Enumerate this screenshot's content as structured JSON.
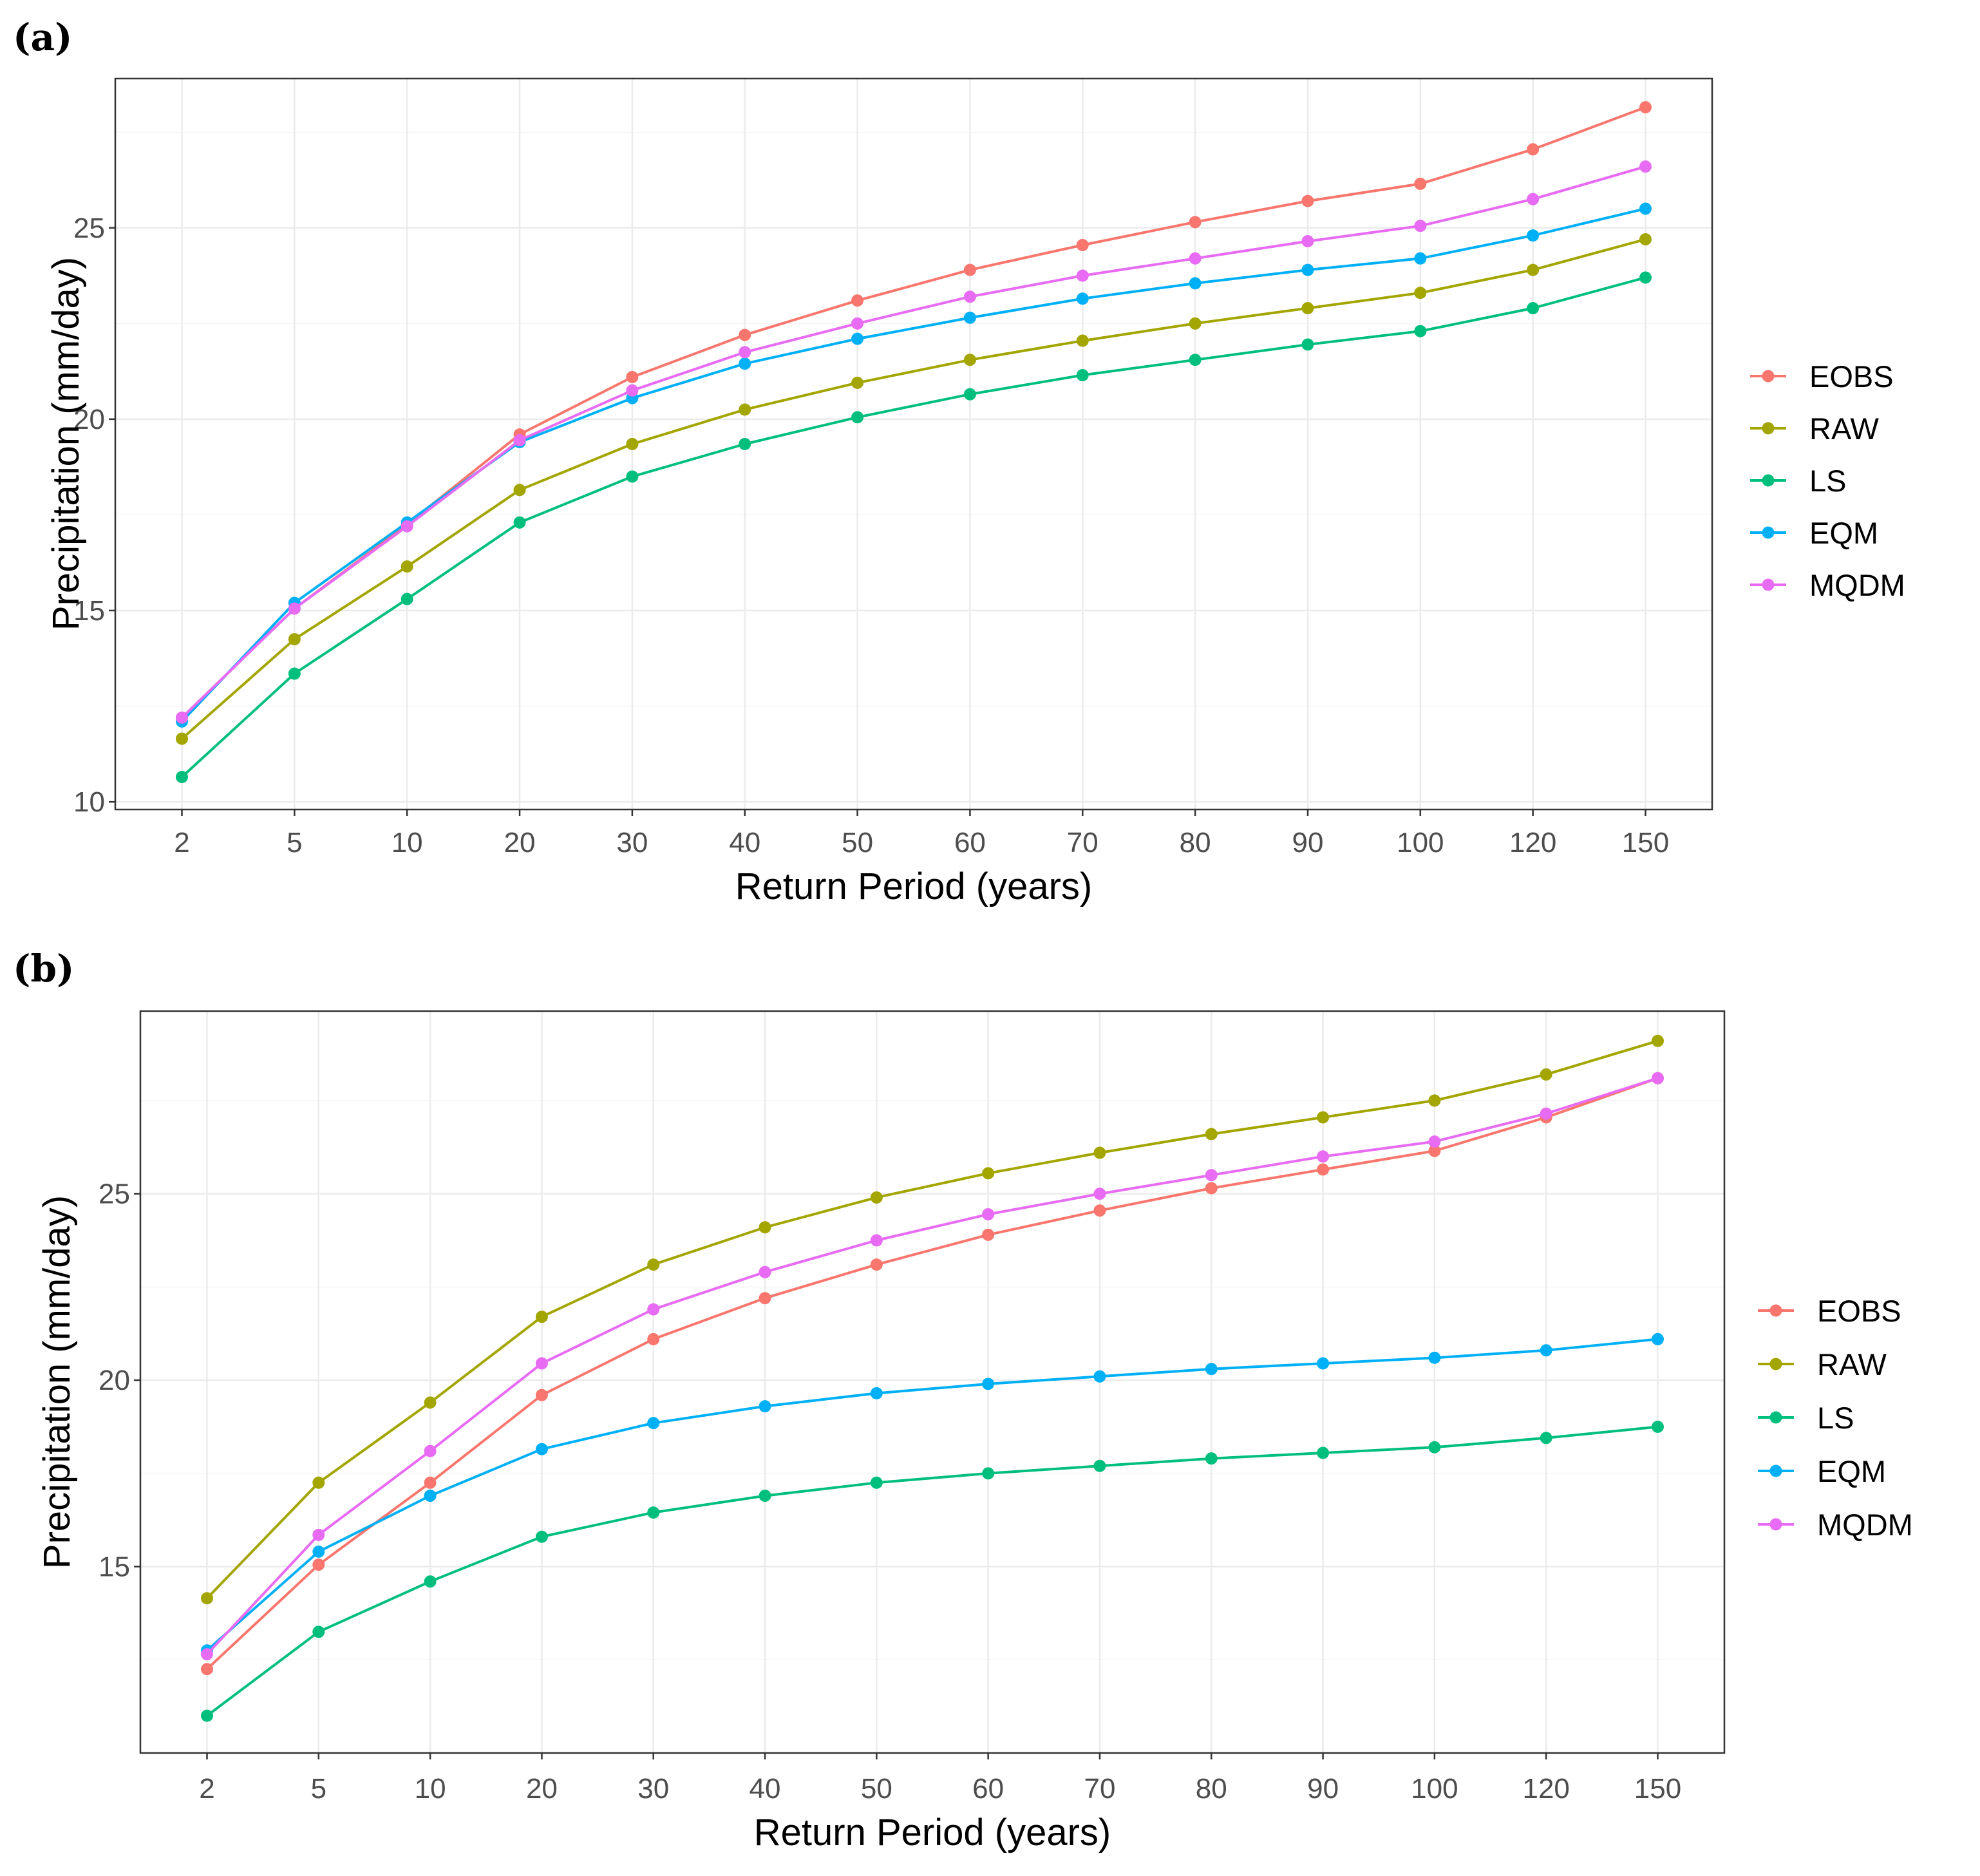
{
  "colors": {
    "EOBS": "#F8766D",
    "RAW": "#A3A500",
    "LS": "#00BF7D",
    "EQM": "#00B0F6",
    "MQDM": "#E76BF3",
    "grid_major": "#EBEBEB",
    "grid_minor": "#F5F5F5",
    "frame": "#333333"
  },
  "chart_data": [
    {
      "panel_label": "(a)",
      "type": "line",
      "xlabel": "Return Period (years)",
      "ylabel": "Precipitation (mm/day)",
      "categories": [
        "2",
        "5",
        "10",
        "20",
        "30",
        "40",
        "50",
        "60",
        "70",
        "80",
        "90",
        "100",
        "120",
        "150"
      ],
      "ylim": [
        9.8,
        28.9
      ],
      "yticks": [
        10,
        15,
        20,
        25
      ],
      "ytick_labels": [
        "10",
        "15",
        "20",
        "25"
      ],
      "grid": true,
      "legend_position": "right",
      "series": [
        {
          "name": "EOBS",
          "values": [
            12.2,
            15.05,
            17.25,
            19.6,
            21.1,
            22.2,
            23.1,
            23.9,
            24.55,
            25.15,
            25.7,
            26.15,
            27.05,
            28.15
          ]
        },
        {
          "name": "RAW",
          "values": [
            11.65,
            14.25,
            16.15,
            18.15,
            19.35,
            20.25,
            20.95,
            21.55,
            22.05,
            22.5,
            22.9,
            23.3,
            23.9,
            24.7
          ]
        },
        {
          "name": "LS",
          "values": [
            10.65,
            13.35,
            15.3,
            17.3,
            18.5,
            19.35,
            20.05,
            20.65,
            21.15,
            21.55,
            21.95,
            22.3,
            22.9,
            23.7
          ]
        },
        {
          "name": "EQM",
          "values": [
            12.1,
            15.2,
            17.3,
            19.4,
            20.55,
            21.45,
            22.1,
            22.65,
            23.15,
            23.55,
            23.9,
            24.2,
            24.8,
            25.5
          ]
        },
        {
          "name": "MQDM",
          "values": [
            12.2,
            15.05,
            17.2,
            19.45,
            20.75,
            21.75,
            22.5,
            23.2,
            23.75,
            24.2,
            24.65,
            25.05,
            25.75,
            26.6
          ]
        }
      ]
    },
    {
      "panel_label": "(b)",
      "type": "line",
      "xlabel": "Return Period (years)",
      "ylabel": "Precipitation (mm/day)",
      "categories": [
        "2",
        "5",
        "10",
        "20",
        "30",
        "40",
        "50",
        "60",
        "70",
        "80",
        "90",
        "100",
        "120",
        "150"
      ],
      "ylim": [
        10.0,
        29.9
      ],
      "yticks": [
        15,
        20,
        25
      ],
      "ytick_labels": [
        "15",
        "20",
        "25"
      ],
      "grid": true,
      "legend_position": "right",
      "series": [
        {
          "name": "EOBS",
          "values": [
            12.25,
            15.05,
            17.25,
            19.6,
            21.1,
            22.2,
            23.1,
            23.9,
            24.55,
            25.15,
            25.65,
            26.15,
            27.05,
            28.1
          ]
        },
        {
          "name": "RAW",
          "values": [
            14.15,
            17.25,
            19.4,
            21.7,
            23.1,
            24.1,
            24.9,
            25.55,
            26.1,
            26.6,
            27.05,
            27.5,
            28.2,
            29.1
          ]
        },
        {
          "name": "LS",
          "values": [
            11.0,
            13.25,
            14.6,
            15.8,
            16.45,
            16.9,
            17.25,
            17.5,
            17.7,
            17.9,
            18.05,
            18.2,
            18.45,
            18.75
          ]
        },
        {
          "name": "EQM",
          "values": [
            12.75,
            15.4,
            16.9,
            18.15,
            18.85,
            19.3,
            19.65,
            19.9,
            20.1,
            20.3,
            20.45,
            20.6,
            20.8,
            21.1
          ]
        },
        {
          "name": "MQDM",
          "values": [
            12.65,
            15.85,
            18.1,
            20.45,
            21.9,
            22.9,
            23.75,
            24.45,
            25.0,
            25.5,
            26.0,
            26.4,
            27.15,
            28.1
          ]
        }
      ]
    }
  ]
}
